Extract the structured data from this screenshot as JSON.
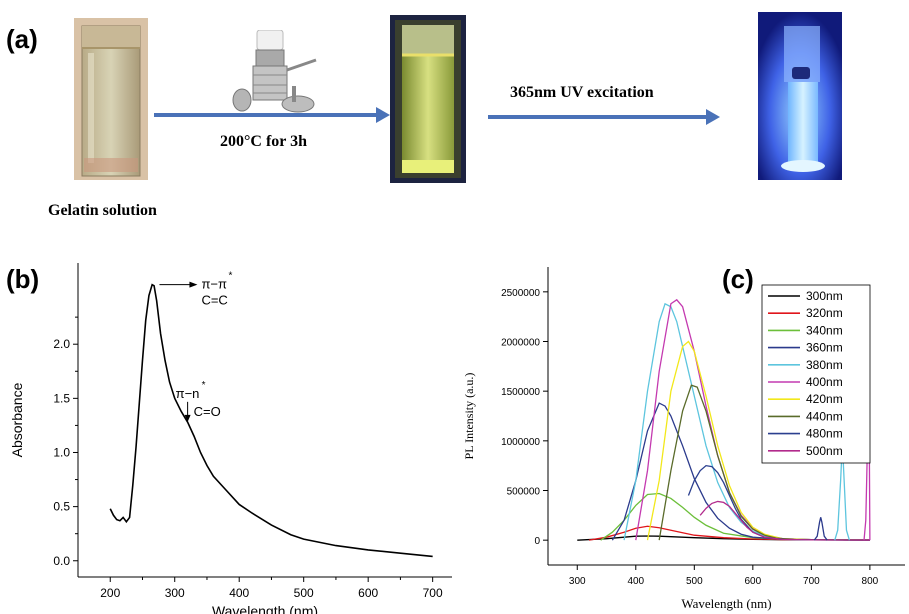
{
  "panel_a": {
    "label": "(a)",
    "caption_gelatin": "Gelatin solution",
    "caption_heat": "200°C for 3h",
    "caption_uv": "365nm UV excitation",
    "icons": [
      "vial-gelatin-icon",
      "autoclave-icon",
      "vial-heated-icon",
      "vial-uv-glow-icon"
    ]
  },
  "panel_b": {
    "label": "(b)"
  },
  "panel_c": {
    "label": "(c)"
  },
  "chart_data": [
    {
      "type": "line",
      "panel": "(b)",
      "xlabel": "Wavelength (nm)",
      "ylabel": "Absorbance",
      "xlim": [
        150,
        730
      ],
      "ylim": [
        -0.15,
        2.75
      ],
      "xticks": [
        200,
        300,
        400,
        500,
        600,
        700
      ],
      "yticks": [
        0.0,
        0.5,
        1.0,
        1.5,
        2.0
      ],
      "ytick_labels": [
        "0.0",
        "0.5",
        "1.0",
        "1.5",
        "2.0"
      ],
      "annotations": [
        {
          "line1": "π−π",
          "sup": "*",
          "line2": "C=C",
          "x": 267,
          "y": 2.55
        },
        {
          "line1": "π−n",
          "sup": "*",
          "line2": "C=O",
          "x": 320,
          "y": 1.32
        }
      ],
      "series": [
        {
          "x": [
            200,
            205,
            210,
            215,
            220,
            225,
            230,
            235,
            240,
            245,
            250,
            255,
            260,
            265,
            268,
            272,
            278,
            285,
            292,
            300,
            310,
            320,
            330,
            340,
            350,
            360,
            380,
            400,
            420,
            450,
            480,
            500,
            550,
            600,
            650,
            700
          ],
          "y": [
            0.48,
            0.42,
            0.38,
            0.37,
            0.4,
            0.36,
            0.4,
            0.7,
            1.05,
            1.45,
            1.85,
            2.22,
            2.45,
            2.55,
            2.54,
            2.4,
            2.1,
            1.85,
            1.65,
            1.5,
            1.38,
            1.28,
            1.15,
            1.0,
            0.88,
            0.78,
            0.65,
            0.52,
            0.44,
            0.33,
            0.24,
            0.2,
            0.14,
            0.1,
            0.07,
            0.04
          ]
        }
      ]
    },
    {
      "type": "line",
      "panel": "(c)",
      "xlabel": "Wavelength (nm)",
      "ylabel": "PL Intensity (a.u.)",
      "xlim": [
        250,
        860
      ],
      "ylim": [
        -250000,
        2750000
      ],
      "xticks": [
        300,
        400,
        500,
        600,
        700,
        800
      ],
      "yticks": [
        0,
        500000,
        1000000,
        1500000,
        2000000,
        2500000
      ],
      "ytick_labels": [
        "0",
        "500000",
        "1000000",
        "1500000",
        "2000000",
        "2500000"
      ],
      "legend_position": "top-right",
      "series": [
        {
          "name": "300nm",
          "color": "#000000",
          "x": [
            300,
            350,
            380,
            400,
            420,
            440,
            460,
            500,
            550,
            600,
            650,
            700,
            750,
            800
          ],
          "y": [
            0,
            15000,
            30000,
            40000,
            42000,
            40000,
            35000,
            25000,
            15000,
            8000,
            5000,
            3000,
            2000,
            1000
          ]
        },
        {
          "name": "320nm",
          "color": "#e0151b",
          "x": [
            320,
            350,
            380,
            400,
            420,
            440,
            460,
            480,
            500,
            550,
            600,
            650,
            700,
            750,
            800
          ],
          "y": [
            0,
            30000,
            80000,
            120000,
            140000,
            125000,
            100000,
            75000,
            50000,
            25000,
            12000,
            6000,
            4000,
            3000,
            2000
          ]
        },
        {
          "name": "340nm",
          "color": "#6cbf3a",
          "x": [
            340,
            360,
            380,
            400,
            420,
            440,
            460,
            480,
            500,
            520,
            550,
            600,
            650,
            700,
            750,
            800
          ],
          "y": [
            0,
            80000,
            200000,
            350000,
            460000,
            470000,
            420000,
            330000,
            230000,
            150000,
            70000,
            25000,
            10000,
            5000,
            3000,
            2000
          ]
        },
        {
          "name": "360nm",
          "color": "#2b3a8c",
          "x": [
            360,
            380,
            400,
            420,
            440,
            450,
            460,
            480,
            500,
            520,
            540,
            560,
            580,
            600,
            650,
            700,
            750,
            800
          ],
          "y": [
            0,
            200000,
            600000,
            1100000,
            1380000,
            1350000,
            1250000,
            950000,
            620000,
            380000,
            220000,
            120000,
            60000,
            30000,
            10000,
            5000,
            3000,
            2000
          ]
        },
        {
          "name": "380nm",
          "color": "#5dc5de",
          "x": [
            380,
            400,
            420,
            440,
            450,
            460,
            470,
            480,
            500,
            520,
            540,
            560,
            580,
            600,
            620,
            650,
            700,
            750,
            800
          ],
          "y": [
            0,
            600000,
            1500000,
            2200000,
            2380000,
            2350000,
            2200000,
            1950000,
            1450000,
            950000,
            580000,
            330000,
            180000,
            90000,
            45000,
            15000,
            5000,
            3000,
            2000
          ]
        },
        {
          "name": "400nm",
          "color": "#c43ab0",
          "x": [
            400,
            420,
            440,
            460,
            470,
            480,
            500,
            520,
            540,
            560,
            580,
            600,
            620,
            650,
            700,
            750,
            800
          ],
          "y": [
            0,
            700000,
            1700000,
            2380000,
            2420000,
            2350000,
            1900000,
            1350000,
            850000,
            480000,
            250000,
            120000,
            55000,
            15000,
            5000,
            3000,
            2000
          ]
        },
        {
          "name": "420nm",
          "color": "#f2e81a",
          "x": [
            420,
            440,
            460,
            480,
            490,
            500,
            520,
            540,
            560,
            580,
            600,
            620,
            650,
            700,
            750,
            800
          ],
          "y": [
            0,
            600000,
            1500000,
            1950000,
            2000000,
            1900000,
            1450000,
            950000,
            550000,
            280000,
            130000,
            60000,
            15000,
            5000,
            3000,
            2000
          ]
        },
        {
          "name": "440nm",
          "color": "#5a6b2a",
          "x": [
            440,
            460,
            480,
            495,
            505,
            520,
            540,
            560,
            580,
            600,
            620,
            640,
            670,
            700,
            750,
            800
          ],
          "y": [
            0,
            700000,
            1300000,
            1560000,
            1540000,
            1300000,
            850000,
            480000,
            240000,
            110000,
            50000,
            20000,
            8000,
            5000,
            3000,
            2000
          ]
        },
        {
          "name": "480nm",
          "color": "#2b3f8f",
          "x": [
            490,
            500,
            510,
            520,
            530,
            540,
            550,
            560,
            570,
            580,
            600,
            620,
            650,
            700,
            750,
            800
          ],
          "y": [
            450000,
            600000,
            700000,
            750000,
            740000,
            680000,
            580000,
            450000,
            320000,
            210000,
            80000,
            30000,
            8000,
            3000,
            2000,
            1000
          ]
        },
        {
          "name": "500nm",
          "color": "#b22a8c",
          "x": [
            510,
            520,
            530,
            540,
            550,
            560,
            570,
            580,
            590,
            600,
            620,
            650,
            700,
            750,
            800
          ],
          "y": [
            250000,
            320000,
            370000,
            390000,
            380000,
            340000,
            270000,
            200000,
            130000,
            80000,
            30000,
            8000,
            3000,
            2000,
            1000
          ]
        }
      ],
      "scatter_peaks": [
        {
          "color": "#2b3a8c",
          "x": [
            705,
            710,
            714,
            716,
            718,
            722,
            727
          ],
          "y": [
            0,
            40000,
            180000,
            230000,
            180000,
            40000,
            0
          ]
        },
        {
          "color": "#5dc5de",
          "x": [
            740,
            745,
            750,
            753,
            756,
            760,
            765
          ],
          "y": [
            0,
            100000,
            600000,
            980000,
            600000,
            100000,
            0
          ]
        },
        {
          "color": "#c43ab0",
          "x": [
            790,
            793,
            796,
            798,
            799,
            800
          ],
          "y": [
            0,
            200000,
            1000000,
            1690000,
            1000000,
            0
          ]
        }
      ]
    }
  ]
}
